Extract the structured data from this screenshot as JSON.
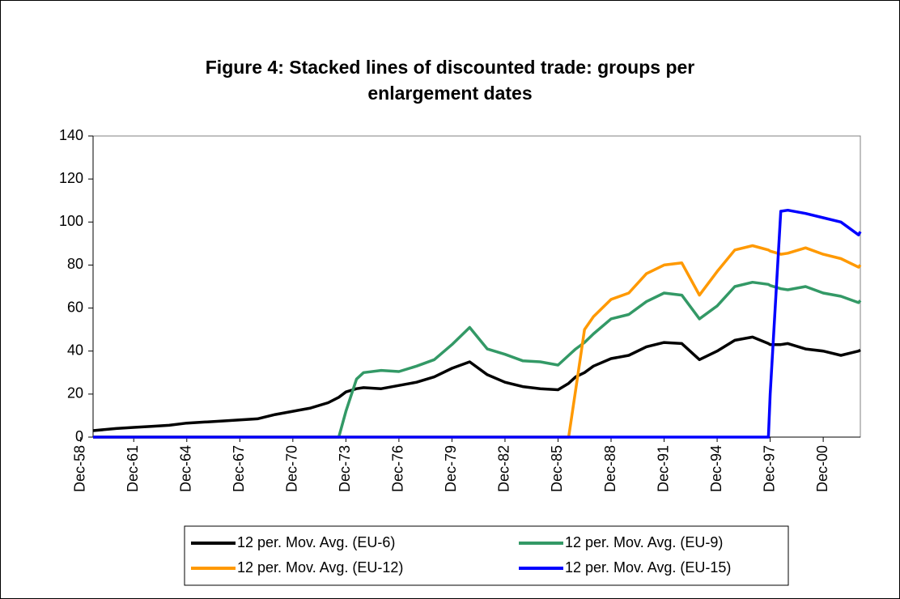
{
  "chart_data": {
    "type": "line",
    "title": [
      "Figure 4: Stacked lines of discounted trade: groups per",
      "enlargement dates"
    ],
    "x": [
      1959.7,
      1961,
      1962,
      1963,
      1964,
      1965,
      1966,
      1967,
      1968,
      1969,
      1970,
      1971,
      1972,
      1973,
      1973.6,
      1974,
      1974.6,
      1975,
      1976,
      1977,
      1978,
      1979,
      1980,
      1981,
      1982,
      1983,
      1984,
      1985,
      1986,
      1986.6,
      1987,
      1987.5,
      1988,
      1989,
      1990,
      1991,
      1992,
      1993,
      1994,
      1995,
      1996,
      1997,
      1997.9,
      1998,
      1998.6,
      1999,
      2000,
      2001,
      2002,
      2003,
      2003.1
    ],
    "series": [
      {
        "name": "12 per. Mov. Avg. (EU-6)",
        "color": "#000000",
        "values": [
          3,
          4,
          4.5,
          5,
          5.5,
          6.5,
          7,
          7.5,
          8,
          8.5,
          10.5,
          12,
          13.5,
          16,
          18.5,
          21,
          22.5,
          23,
          22.5,
          24,
          25.5,
          28,
          32,
          35,
          29,
          25.5,
          23.5,
          22.5,
          22,
          25,
          28,
          30,
          33,
          36.5,
          38,
          42,
          44,
          43.5,
          36,
          40,
          45,
          46.5,
          43.5,
          43,
          43,
          43.5,
          41,
          40,
          38,
          40,
          40.5
        ]
      },
      {
        "name": "12 per. Mov. Avg. (EU-9)",
        "color": "#339966",
        "values": [
          0,
          0,
          0,
          0,
          0,
          0,
          0,
          0,
          0,
          0,
          0,
          0,
          0,
          0,
          0,
          12,
          27,
          30,
          31,
          30.5,
          33,
          36,
          43,
          51,
          41,
          38.5,
          35.5,
          35,
          33.5,
          38,
          41,
          44,
          48,
          55,
          57,
          63,
          67,
          66,
          55,
          61,
          70,
          72,
          71,
          70.5,
          69,
          68.5,
          70,
          67,
          65.5,
          62.5,
          63.5
        ]
      },
      {
        "name": "12 per. Mov. Avg. (EU-12)",
        "color": "#ff9900",
        "values": [
          0,
          0,
          0,
          0,
          0,
          0,
          0,
          0,
          0,
          0,
          0,
          0,
          0,
          0,
          0,
          0,
          0,
          0,
          0,
          0,
          0,
          0,
          0,
          0,
          0,
          0,
          0,
          0,
          0,
          0,
          22,
          50,
          56,
          64,
          67,
          76,
          80,
          81,
          66,
          77,
          87,
          89,
          87,
          86.5,
          85,
          85.5,
          88,
          85,
          83,
          79,
          80
        ]
      },
      {
        "name": "12 per. Mov. Avg. (EU-15)",
        "color": "#0000ff",
        "values": [
          0,
          0,
          0,
          0,
          0,
          0,
          0,
          0,
          0,
          0,
          0,
          0,
          0,
          0,
          0,
          0,
          0,
          0,
          0,
          0,
          0,
          0,
          0,
          0,
          0,
          0,
          0,
          0,
          0,
          0,
          0,
          0,
          0,
          0,
          0,
          0,
          0,
          0,
          0,
          0,
          0,
          0,
          0,
          20,
          105,
          105.5,
          104,
          102,
          100,
          94,
          95.5
        ]
      }
    ],
    "xlim": [
      1959.7,
      2003.1
    ],
    "xticks": [
      {
        "value": 1959,
        "label": "Dec-58"
      },
      {
        "value": 1962,
        "label": "Dec-61"
      },
      {
        "value": 1965,
        "label": "Dec-64"
      },
      {
        "value": 1968,
        "label": "Dec-67"
      },
      {
        "value": 1971,
        "label": "Dec-70"
      },
      {
        "value": 1974,
        "label": "Dec-73"
      },
      {
        "value": 1977,
        "label": "Dec-76"
      },
      {
        "value": 1980,
        "label": "Dec-79"
      },
      {
        "value": 1983,
        "label": "Dec-82"
      },
      {
        "value": 1986,
        "label": "Dec-85"
      },
      {
        "value": 1989,
        "label": "Dec-88"
      },
      {
        "value": 1992,
        "label": "Dec-91"
      },
      {
        "value": 1995,
        "label": "Dec-94"
      },
      {
        "value": 1998,
        "label": "Dec-97"
      },
      {
        "value": 2001,
        "label": "Dec-00"
      }
    ],
    "ylim": [
      0,
      140
    ],
    "yticks": [
      0,
      20,
      40,
      60,
      80,
      100,
      120,
      140
    ],
    "grid": false,
    "legend": "bottom"
  }
}
